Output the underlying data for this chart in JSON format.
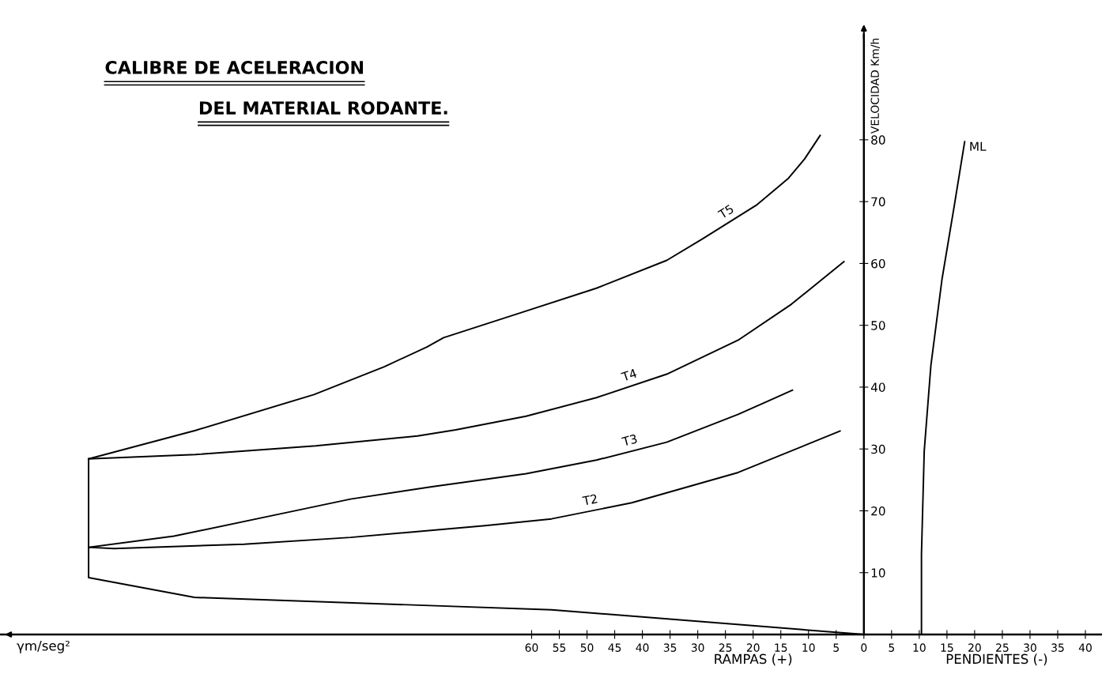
{
  "chart_data": {
    "type": "line",
    "title": "CALIBRE DE ACELERACION",
    "subtitle": "DEL MATERIAL RODANTE.",
    "xlabel": "RAMPAS (+)",
    "ylabel": "VELOCIDAD Km/h",
    "annotations": [
      "PENDIENTES (-)",
      "γm/seg²"
    ],
    "xlim": [
      -156,
      43
    ],
    "ylim": [
      0,
      97
    ],
    "xticks": [
      {
        "value": -60,
        "label": "60"
      },
      {
        "value": -55,
        "label": "55"
      },
      {
        "value": -50,
        "label": "50"
      },
      {
        "value": -45,
        "label": "45"
      },
      {
        "value": -40,
        "label": "40"
      },
      {
        "value": -35,
        "label": "35"
      },
      {
        "value": -30,
        "label": "30"
      },
      {
        "value": -25,
        "label": "25"
      },
      {
        "value": -20,
        "label": "20"
      },
      {
        "value": -15,
        "label": "15"
      },
      {
        "value": -10,
        "label": "10"
      },
      {
        "value": -5,
        "label": "5"
      },
      0,
      5,
      10,
      15,
      20,
      25,
      30,
      35,
      40
    ],
    "yticks": [
      10,
      20,
      30,
      40,
      50,
      60,
      70,
      80
    ],
    "grid": false,
    "line_style": "solid",
    "series": [
      {
        "name": "T5",
        "color": "#000000",
        "x": [
          -140.0,
          -120.7,
          -99.3,
          -86.6,
          -78.9,
          -75.9,
          -61.0,
          -48.3,
          -35.6,
          -29.1,
          -19.3,
          -13.6,
          -10.7,
          -7.9
        ],
        "values": [
          28.4,
          33.0,
          38.8,
          43.3,
          46.5,
          48.0,
          52.3,
          56.0,
          60.5,
          64.0,
          69.5,
          73.8,
          76.9,
          80.7
        ]
      },
      {
        "name": "T4",
        "color": "#000000",
        "x": [
          -140.0,
          -120.7,
          -99.0,
          -80.6,
          -73.7,
          -61.0,
          -48.3,
          -35.6,
          -22.7,
          -13.1,
          -3.6
        ],
        "values": [
          28.4,
          29.1,
          30.5,
          32.1,
          33.1,
          35.3,
          38.3,
          42.1,
          47.6,
          53.4,
          60.3
        ]
      },
      {
        "name": "T3",
        "color": "#000000",
        "x": [
          -140.0,
          -124.6,
          -105.4,
          -92.7,
          -78.0,
          -61.0,
          -48.3,
          -35.6,
          -22.7,
          -12.9
        ],
        "values": [
          14.1,
          15.9,
          19.5,
          21.9,
          23.9,
          26.0,
          28.2,
          31.1,
          35.6,
          39.5
        ]
      },
      {
        "name": "T2",
        "color": "#000000",
        "x": [
          -140.0,
          -135.4,
          -111.9,
          -92.7,
          -68.4,
          -56.4,
          -41.9,
          -22.7,
          -4.3
        ],
        "values": [
          14.1,
          13.9,
          14.6,
          15.7,
          17.6,
          18.7,
          21.3,
          26.2,
          32.9
        ]
      },
      {
        "name": "ML",
        "color": "#000000",
        "x": [
          10.4,
          10.4,
          10.9,
          12.1,
          14.1,
          16.3,
          18.2
        ],
        "values": [
          0.1,
          13.0,
          29.7,
          43.5,
          57.4,
          69.2,
          79.7
        ]
      },
      {
        "color": "#000000",
        "x": [
          -140.0,
          -140.0,
          -120.9,
          -56.4,
          0
        ],
        "values": [
          28.4,
          9.2,
          6.0,
          4.0,
          0
        ]
      }
    ]
  }
}
